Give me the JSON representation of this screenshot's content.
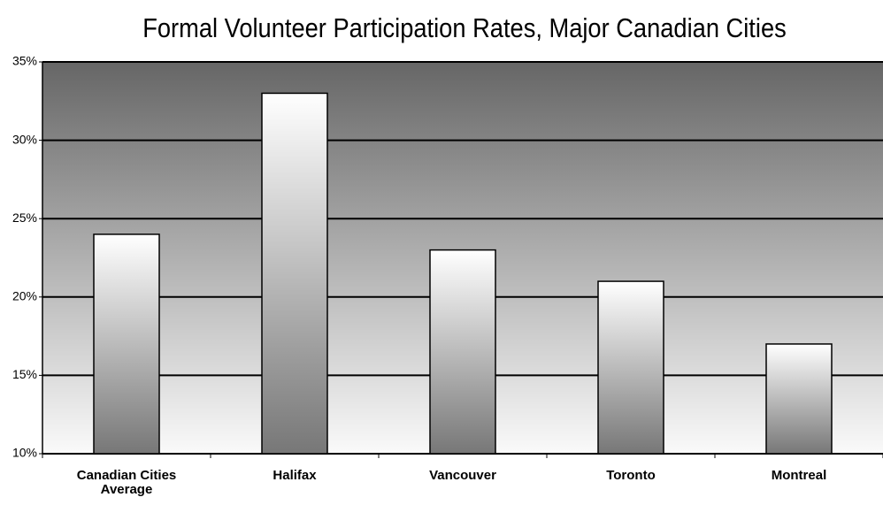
{
  "chart_data": {
    "type": "bar",
    "title": "Formal Volunteer Participation Rates, Major Canadian Cities",
    "categories": [
      "Canadian Cities Average",
      "Halifax",
      "Vancouver",
      "Toronto",
      "Montreal"
    ],
    "values": [
      24,
      33,
      23,
      21,
      17
    ],
    "ylim": [
      10,
      35
    ],
    "yticks": [
      {
        "value": 10,
        "label": "10%"
      },
      {
        "value": 15,
        "label": "15%"
      },
      {
        "value": 20,
        "label": "20%"
      },
      {
        "value": 25,
        "label": "25%"
      },
      {
        "value": 30,
        "label": "30%"
      },
      {
        "value": 35,
        "label": "35%"
      }
    ],
    "grid": true
  }
}
